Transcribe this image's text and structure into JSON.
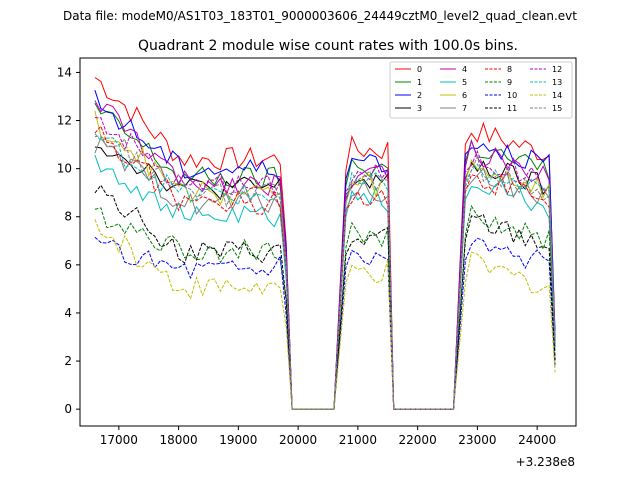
{
  "header": {
    "suptitle": "Data file: modeM0/AS1T03_183T01_9000003606_24449cztM0_level2_quad_clean.evt"
  },
  "chart_data": {
    "type": "line",
    "title": "Quadrant 2 module wise count rates with 100.0s bins.",
    "xlabel": "",
    "ylabel": "",
    "x_offset_label": "+3.238e8",
    "xlim": [
      16350,
      24650
    ],
    "ylim": [
      -0.7,
      14.6
    ],
    "xticks": [
      17000,
      18000,
      19000,
      20000,
      21000,
      22000,
      23000,
      24000
    ],
    "yticks": [
      0,
      2,
      4,
      6,
      8,
      10,
      12,
      14
    ],
    "legend_position": "top-right",
    "segments": [
      {
        "start": 16600,
        "end": 19800
      },
      {
        "start": 20800,
        "end": 21500
      },
      {
        "start": 22800,
        "end": 24300
      }
    ],
    "gaps": [
      {
        "x": [
          19900,
          20000,
          20100,
          20200,
          20300,
          20400,
          20500,
          20600
        ]
      },
      {
        "x": [
          21600,
          21700,
          21800,
          21900,
          22000,
          22100,
          22200,
          22300,
          22400,
          22500,
          22600
        ]
      }
    ],
    "series": [
      {
        "name": "0",
        "color": "#ff0000",
        "dash": "solid",
        "start_value": 13.8,
        "seg1_value": 10.4,
        "seg2_value": 10.8,
        "seg3_value": 10.5,
        "edge_value": 6.9
      },
      {
        "name": "1",
        "color": "#008000",
        "dash": "solid",
        "start_value": 12.5,
        "seg1_value": 9.6,
        "seg2_value": 10.1,
        "seg3_value": 9.8,
        "edge_value": 6.4
      },
      {
        "name": "2",
        "color": "#0000ff",
        "dash": "solid",
        "start_value": 12.8,
        "seg1_value": 10.0,
        "seg2_value": 10.4,
        "seg3_value": 10.1,
        "edge_value": 6.7
      },
      {
        "name": "3",
        "color": "#000000",
        "dash": "solid",
        "start_value": 11.2,
        "seg1_value": 9.2,
        "seg2_value": 9.5,
        "seg3_value": 9.1,
        "edge_value": 6.1
      },
      {
        "name": "4",
        "color": "#bf00bf",
        "dash": "solid",
        "start_value": 12.9,
        "seg1_value": 9.4,
        "seg2_value": 9.7,
        "seg3_value": 9.6,
        "edge_value": 6.3
      },
      {
        "name": "5",
        "color": "#00bfbf",
        "dash": "solid",
        "start_value": 10.4,
        "seg1_value": 8.0,
        "seg2_value": 8.7,
        "seg3_value": 8.3,
        "edge_value": 5.4
      },
      {
        "name": "6",
        "color": "#bfbf00",
        "dash": "solid",
        "start_value": 12.0,
        "seg1_value": 9.0,
        "seg2_value": 9.3,
        "seg3_value": 9.0,
        "edge_value": 6.0
      },
      {
        "name": "7",
        "color": "#808080",
        "dash": "solid",
        "start_value": 11.0,
        "seg1_value": 8.6,
        "seg2_value": 9.0,
        "seg3_value": 8.7,
        "edge_value": 5.8
      },
      {
        "name": "8",
        "color": "#ff0000",
        "dash": "dashed",
        "start_value": 11.6,
        "seg1_value": 8.6,
        "seg2_value": 9.0,
        "seg3_value": 8.6,
        "edge_value": 5.8
      },
      {
        "name": "9",
        "color": "#008000",
        "dash": "dashed",
        "start_value": 8.2,
        "seg1_value": 6.6,
        "seg2_value": 7.3,
        "seg3_value": 6.9,
        "edge_value": 4.6
      },
      {
        "name": "10",
        "color": "#0000ff",
        "dash": "dashed",
        "start_value": 6.8,
        "seg1_value": 5.9,
        "seg2_value": 6.4,
        "seg3_value": 5.9,
        "edge_value": 3.9
      },
      {
        "name": "11",
        "color": "#000000",
        "dash": "dashed",
        "start_value": 9.4,
        "seg1_value": 6.5,
        "seg2_value": 7.0,
        "seg3_value": 6.7,
        "edge_value": 4.5
      },
      {
        "name": "12",
        "color": "#bf00bf",
        "dash": "dashed",
        "start_value": 12.3,
        "seg1_value": 9.3,
        "seg2_value": 9.8,
        "seg3_value": 9.4,
        "edge_value": 6.2
      },
      {
        "name": "13",
        "color": "#00bfbf",
        "dash": "dashed",
        "start_value": 11.4,
        "seg1_value": 8.9,
        "seg2_value": 9.3,
        "seg3_value": 8.8,
        "edge_value": 5.9
      },
      {
        "name": "14",
        "color": "#bfbf00",
        "dash": "dashed",
        "start_value": 7.6,
        "seg1_value": 5.1,
        "seg2_value": 5.7,
        "seg3_value": 5.0,
        "edge_value": 3.4
      },
      {
        "name": "15",
        "color": "#808080",
        "dash": "dashed",
        "start_value": 11.8,
        "seg1_value": 8.9,
        "seg2_value": 9.4,
        "seg3_value": 9.0,
        "edge_value": 6.0
      }
    ]
  }
}
